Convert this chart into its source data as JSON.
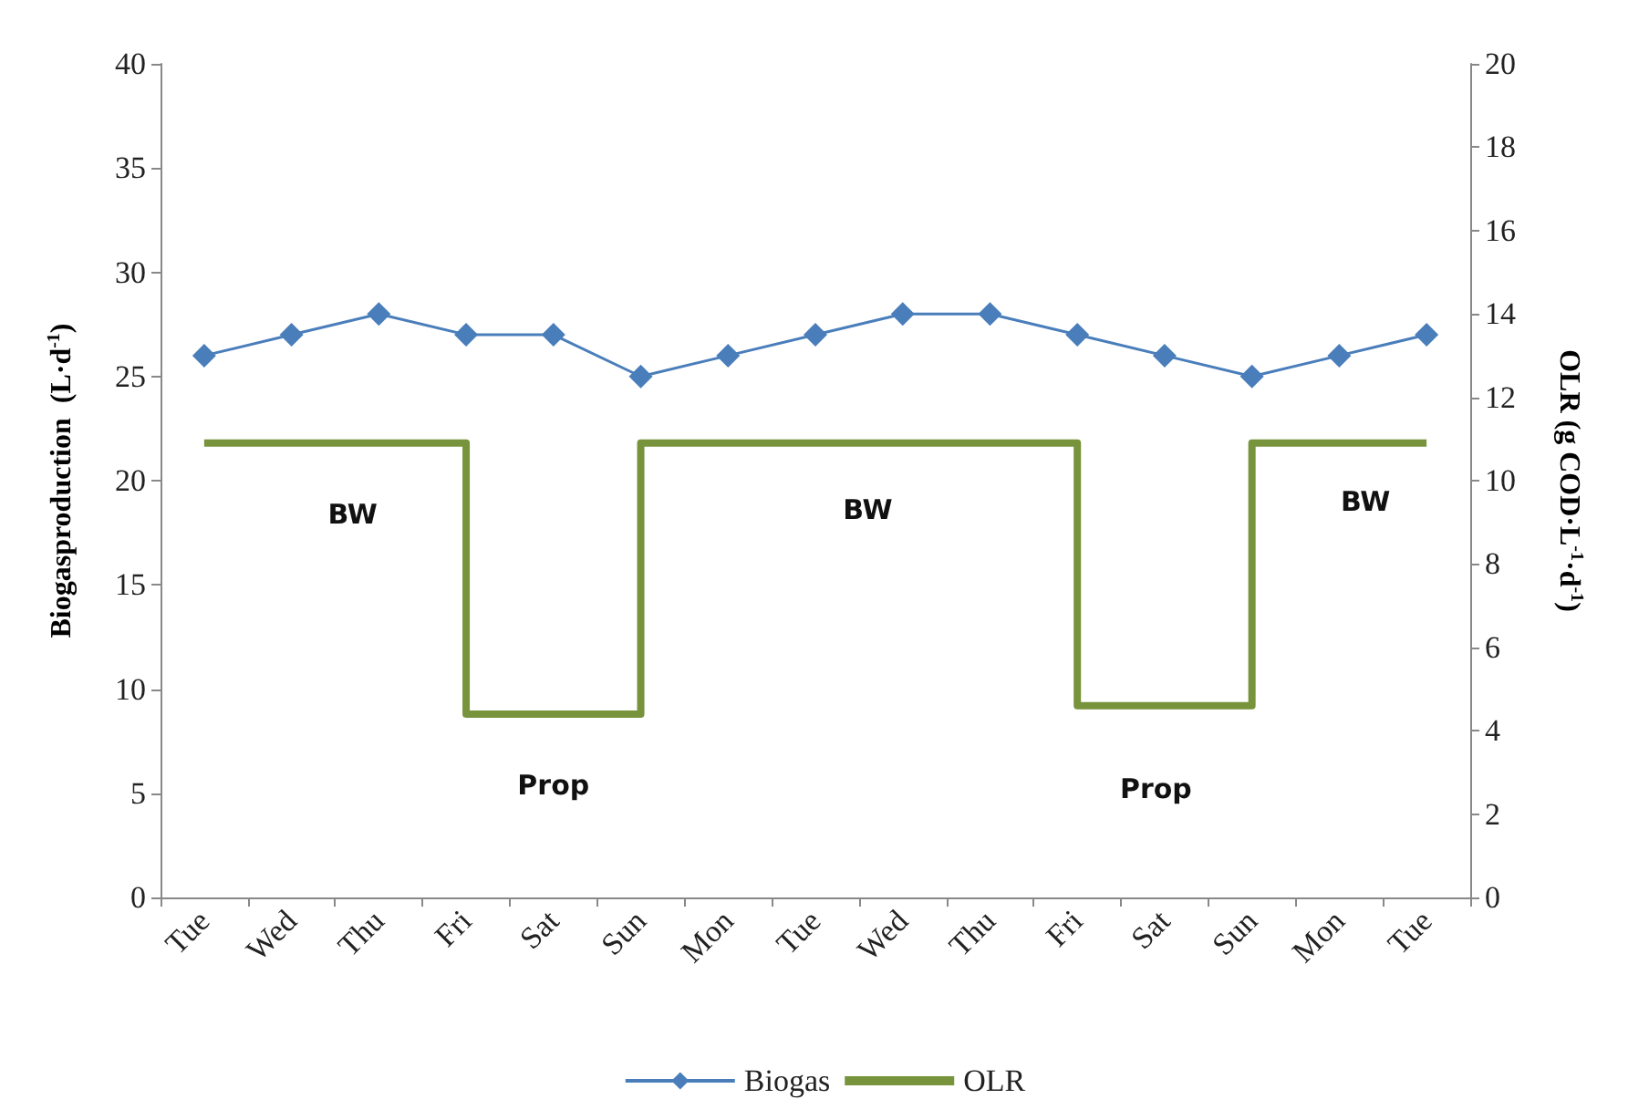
{
  "chart_data": {
    "type": "line",
    "xlabel": null,
    "ylabel": "Biogasproduction  (L·d$^{-1}$)",
    "y2label": "OLR (g COD·L$^{-1}$·d$^{-1}$)",
    "categories": [
      "Tue",
      "Wed",
      "Thu",
      "Fri",
      "Sat",
      "Sun",
      "Mon",
      "Tue",
      "Wed",
      "Thu",
      "Fri",
      "Sat",
      "Sun",
      "Mon",
      "Tue"
    ],
    "series": [
      {
        "name": "Biogas",
        "color": "#4a7ebb",
        "marker": "diamond",
        "values": [
          26,
          27,
          28,
          27,
          27,
          25,
          26,
          27,
          28,
          28,
          27,
          26,
          25,
          26,
          27
        ]
      },
      {
        "name": "OLR",
        "type": "step",
        "axis": "y2",
        "color": "#77933c",
        "marker": "none",
        "values": [
          10.9,
          10.9,
          10.9,
          4.4,
          4.4,
          10.9,
          10.9,
          10.9,
          10.9,
          10.9,
          4.6,
          4.6,
          10.9,
          10.9,
          10.9
        ]
      }
    ],
    "ylim": [
      0,
      40
    ],
    "yticks": [
      0,
      5,
      10,
      15,
      20,
      25,
      30,
      35,
      40
    ],
    "y2lim": [
      0,
      20
    ],
    "y2ticks": [
      0,
      2,
      4,
      6,
      8,
      10,
      12,
      14,
      16,
      18,
      20
    ],
    "grid": false,
    "legend": "bottom",
    "annotations": [
      "BW",
      "Prop",
      "BW",
      "Prop",
      "BW"
    ]
  }
}
